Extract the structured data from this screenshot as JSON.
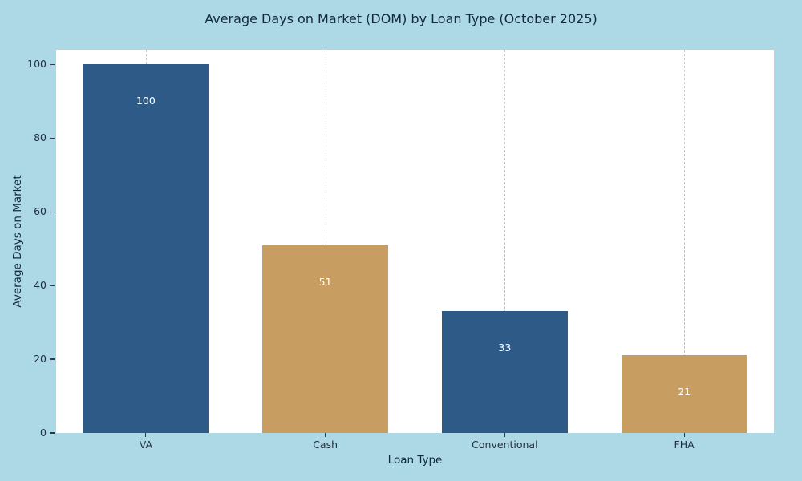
{
  "chart_data": {
    "type": "bar",
    "title": "Average Days on Market (DOM) by Loan Type (October 2025)",
    "xlabel": "Loan Type",
    "ylabel": "Average Days on Market",
    "categories": [
      "VA",
      "Cash",
      "Conventional",
      "FHA"
    ],
    "values": [
      100,
      51,
      33,
      21
    ],
    "value_labels": [
      "100",
      "51",
      "33",
      "21"
    ],
    "yticks": [
      0,
      20,
      40,
      60,
      80,
      100
    ],
    "ylim": [
      0,
      104
    ],
    "bar_colors": [
      "#2e5a87",
      "#c89d62",
      "#2e5a87",
      "#c89d62"
    ],
    "background_color": "#add8e6",
    "plot_background_color": "#ffffff",
    "grid": "vertical-dashed",
    "legend": "none"
  }
}
